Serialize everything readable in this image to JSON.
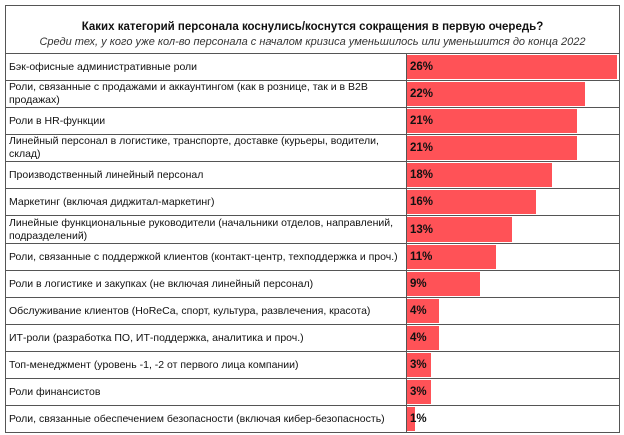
{
  "chart_data": {
    "type": "bar",
    "orientation": "horizontal",
    "title": "Каких категорий персонала коснулись/коснутся сокращения в первую очередь?",
    "subtitle": "Среди тех, у кого уже кол-во персонала с началом кризиса уменьшилось или уменьшится до конца 2022",
    "categories": [
      "Бэк-офисные административные роли",
      "Роли, связанные с продажами и аккаунтингом (как в рознице, так и в B2B продажах)",
      "Роли в HR-функции",
      "Линейный персонал в логистике, транспорте, доставке (курьеры, водители, склад)",
      "Производственный линейный персонал",
      "Маркетинг (включая диджитал-маркетинг)",
      "Линейные функциональные руководители (начальники отделов, направлений, подразделений)",
      "Роли, связанные с поддержкой клиентов (контакт-центр, техподдержка и проч.)",
      "Роли в логистике и закупках (не включая линейный персонал)",
      "Обслуживание клиентов (HoReCa, спорт, культура, развлечения, красота)",
      "ИТ-роли (разработка ПО, ИТ-поддержка, аналитика и проч.)",
      "Топ-менеджмент (уровень -1, -2 от первого лица компании)",
      "Роли финансистов",
      "Роли, связанные обеспечением безопасности (включая кибер-безопасность)"
    ],
    "values": [
      26,
      22,
      21,
      21,
      18,
      16,
      13,
      11,
      9,
      4,
      4,
      3,
      3,
      1
    ],
    "labels": [
      "26%",
      "22%",
      "21%",
      "21%",
      "18%",
      "16%",
      "13%",
      "11%",
      "9%",
      "4%",
      "4%",
      "3%",
      "3%",
      "1%"
    ],
    "unit": "%",
    "xlim": [
      0,
      26
    ],
    "bar_color": "#FF5257",
    "grid": false,
    "legend": "none"
  }
}
